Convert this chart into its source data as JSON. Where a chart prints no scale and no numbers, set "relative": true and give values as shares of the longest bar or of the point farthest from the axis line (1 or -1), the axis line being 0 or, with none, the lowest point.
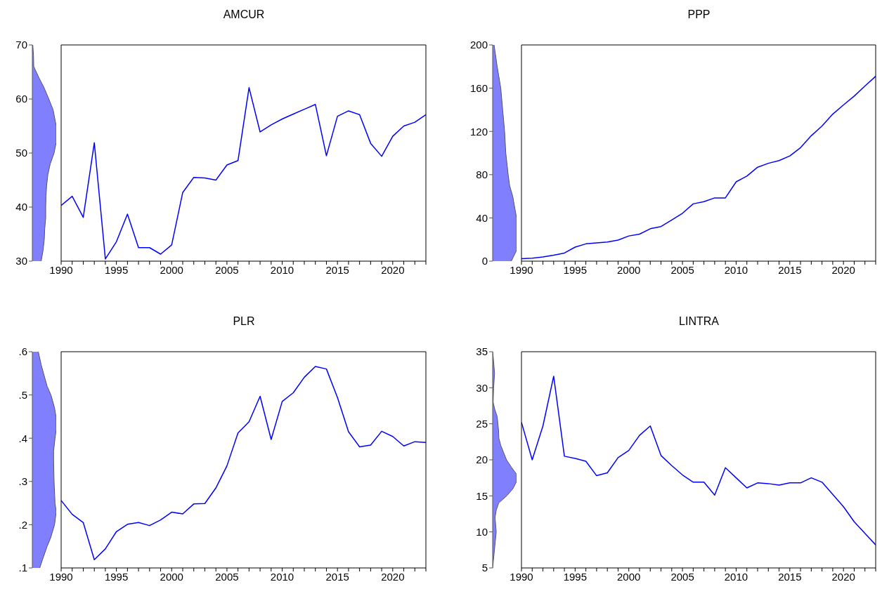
{
  "chart_data": [
    {
      "type": "area",
      "orientation": "horizontal",
      "relative": true,
      "color": "#8080ff",
      "x": [
        30,
        32,
        34,
        36,
        38,
        40,
        42,
        44,
        46,
        48,
        50,
        52,
        55,
        58,
        60,
        62,
        64,
        66,
        68,
        70
      ],
      "values": [
        0.37,
        0.45,
        0.5,
        0.52,
        0.56,
        0.56,
        0.57,
        0.6,
        0.65,
        0.75,
        0.91,
        1,
        1,
        0.87,
        0.69,
        0.5,
        0.27,
        0.06,
        0.05,
        0.02
      ],
      "ylim": [
        30,
        70
      ],
      "yticks": [
        30,
        40,
        50,
        60,
        70
      ],
      "tick_labels": "y"
    },
    {
      "type": "line",
      "title": "AMCUR",
      "color": "#0000ff",
      "x": [
        1990,
        1991,
        1992,
        1993,
        1994,
        1995,
        1996,
        1997,
        1998,
        1999,
        2000,
        2001,
        2002,
        2003,
        2004,
        2005,
        2006,
        2007,
        2008,
        2009,
        2010,
        2011,
        2012,
        2013,
        2014,
        2015,
        2016,
        2017,
        2018,
        2019,
        2020,
        2021,
        2022,
        2023
      ],
      "values": [
        40.3,
        42.0,
        38.1,
        51.9,
        30.4,
        33.6,
        38.7,
        32.5,
        32.5,
        31.3,
        33.0,
        42.7,
        45.5,
        45.4,
        45.0,
        47.8,
        48.6,
        62.1,
        53.9,
        55.2,
        56.3,
        57.2,
        58.1,
        59.0,
        49.5,
        56.8,
        57.8,
        57.1,
        51.8,
        49.4,
        53.1,
        55.0,
        55.7,
        57.1
      ],
      "xlim": [
        1990,
        2023
      ],
      "xticks": [
        1990,
        {
          "value": 1991,
          "label": null
        },
        {
          "value": 1992,
          "label": null
        },
        {
          "value": 1993,
          "label": null
        },
        {
          "value": 1994,
          "label": null
        },
        1995,
        {
          "value": 1996,
          "label": null
        },
        {
          "value": 1997,
          "label": null
        },
        {
          "value": 1998,
          "label": null
        },
        {
          "value": 1999,
          "label": null
        },
        2000,
        {
          "value": 2001,
          "label": null
        },
        {
          "value": 2002,
          "label": null
        },
        {
          "value": 2003,
          "label": null
        },
        {
          "value": 2004,
          "label": null
        },
        2005,
        {
          "value": 2006,
          "label": null
        },
        {
          "value": 2007,
          "label": null
        },
        {
          "value": 2008,
          "label": null
        },
        {
          "value": 2009,
          "label": null
        },
        2010,
        {
          "value": 2011,
          "label": null
        },
        {
          "value": 2012,
          "label": null
        },
        {
          "value": 2013,
          "label": null
        },
        {
          "value": 2014,
          "label": null
        },
        2015,
        {
          "value": 2016,
          "label": null
        },
        {
          "value": 2017,
          "label": null
        },
        {
          "value": 2018,
          "label": null
        },
        {
          "value": 2019,
          "label": null
        },
        2020,
        {
          "value": 2021,
          "label": null
        },
        {
          "value": 2022,
          "label": null
        },
        {
          "value": 2023,
          "label": null
        }
      ],
      "ylim": [
        30,
        70
      ],
      "tick_labels": "x"
    },
    {
      "type": "area",
      "orientation": "horizontal",
      "relative": true,
      "color": "#8080ff",
      "x": [
        0,
        10,
        20,
        40,
        60,
        70,
        80,
        100,
        120,
        140,
        160,
        180,
        200
      ],
      "values": [
        0.78,
        1,
        1,
        1,
        0.84,
        0.71,
        0.65,
        0.55,
        0.5,
        0.42,
        0.34,
        0.19,
        0.06
      ],
      "ylim": [
        0,
        200
      ],
      "yticks": [
        0,
        40,
        80,
        120,
        160,
        200
      ],
      "tick_labels": "y"
    },
    {
      "type": "line",
      "title": "PPP",
      "color": "#0000ff",
      "x": [
        1990,
        1991,
        1992,
        1993,
        1994,
        1995,
        1996,
        1997,
        1998,
        1999,
        2000,
        2001,
        2002,
        2003,
        2004,
        2005,
        2006,
        2007,
        2008,
        2009,
        2010,
        2011,
        2012,
        2013,
        2014,
        2015,
        2016,
        2017,
        2018,
        2019,
        2020,
        2021,
        2022,
        2023
      ],
      "values": [
        2.3,
        2.8,
        3.9,
        5.5,
        7.5,
        13,
        16,
        16.9,
        17.7,
        19.5,
        23.3,
        25,
        30,
        32,
        38,
        44.3,
        53,
        55,
        58.5,
        58.5,
        73.4,
        78.7,
        86.9,
        90.5,
        93,
        97.3,
        105,
        116,
        125,
        136,
        144.5,
        152.7,
        162,
        171
      ],
      "xlim": [
        1990,
        2023
      ],
      "xticks": [
        1990,
        {
          "value": 1991,
          "label": null
        },
        {
          "value": 1992,
          "label": null
        },
        {
          "value": 1993,
          "label": null
        },
        {
          "value": 1994,
          "label": null
        },
        1995,
        {
          "value": 1996,
          "label": null
        },
        {
          "value": 1997,
          "label": null
        },
        {
          "value": 1998,
          "label": null
        },
        {
          "value": 1999,
          "label": null
        },
        2000,
        {
          "value": 2001,
          "label": null
        },
        {
          "value": 2002,
          "label": null
        },
        {
          "value": 2003,
          "label": null
        },
        {
          "value": 2004,
          "label": null
        },
        2005,
        {
          "value": 2006,
          "label": null
        },
        {
          "value": 2007,
          "label": null
        },
        {
          "value": 2008,
          "label": null
        },
        {
          "value": 2009,
          "label": null
        },
        2010,
        {
          "value": 2011,
          "label": null
        },
        {
          "value": 2012,
          "label": null
        },
        {
          "value": 2013,
          "label": null
        },
        {
          "value": 2014,
          "label": null
        },
        2015,
        {
          "value": 2016,
          "label": null
        },
        {
          "value": 2017,
          "label": null
        },
        {
          "value": 2018,
          "label": null
        },
        {
          "value": 2019,
          "label": null
        },
        2020,
        {
          "value": 2021,
          "label": null
        },
        {
          "value": 2022,
          "label": null
        },
        {
          "value": 2023,
          "label": null
        }
      ],
      "ylim": [
        0,
        200
      ],
      "tick_labels": "x"
    },
    {
      "type": "area",
      "orientation": "horizontal",
      "relative": true,
      "color": "#8080ff",
      "x": [
        0.1,
        0.12,
        0.15,
        0.17,
        0.2,
        0.23,
        0.25,
        0.3,
        0.35,
        0.37,
        0.4,
        0.42,
        0.45,
        0.47,
        0.5,
        0.52,
        0.55,
        0.57,
        0.6
      ],
      "values": [
        0.31,
        0.43,
        0.62,
        0.77,
        0.93,
        1,
        0.95,
        0.91,
        0.89,
        0.89,
        0.95,
        1,
        0.99,
        0.93,
        0.78,
        0.62,
        0.47,
        0.37,
        0.25
      ],
      "ylim": [
        0.1,
        0.6
      ],
      "yticks": [
        {
          "value": 0.1,
          "label": ".1"
        },
        {
          "value": 0.2,
          "label": ".2"
        },
        {
          "value": 0.3,
          "label": ".3"
        },
        {
          "value": 0.4,
          "label": ".4"
        },
        {
          "value": 0.5,
          "label": ".5"
        },
        {
          "value": 0.6,
          "label": ".6"
        }
      ],
      "tick_labels": "y"
    },
    {
      "type": "line",
      "title": "PLR",
      "color": "#0000ff",
      "x": [
        1990,
        1991,
        1992,
        1993,
        1994,
        1995,
        1996,
        1997,
        1998,
        1999,
        2000,
        2001,
        2002,
        2003,
        2004,
        2005,
        2006,
        2007,
        2008,
        2009,
        2010,
        2011,
        2012,
        2013,
        2014,
        2015,
        2016,
        2017,
        2018,
        2019,
        2020,
        2021,
        2022,
        2023
      ],
      "values": [
        0.256,
        0.224,
        0.205,
        0.119,
        0.144,
        0.184,
        0.201,
        0.205,
        0.198,
        0.211,
        0.229,
        0.225,
        0.248,
        0.249,
        0.285,
        0.336,
        0.412,
        0.438,
        0.497,
        0.397,
        0.485,
        0.505,
        0.541,
        0.566,
        0.56,
        0.494,
        0.415,
        0.38,
        0.384,
        0.416,
        0.404,
        0.382,
        0.392,
        0.39
      ],
      "xlim": [
        1990,
        2023
      ],
      "xticks": [
        1990,
        {
          "value": 1991,
          "label": null
        },
        {
          "value": 1992,
          "label": null
        },
        {
          "value": 1993,
          "label": null
        },
        {
          "value": 1994,
          "label": null
        },
        1995,
        {
          "value": 1996,
          "label": null
        },
        {
          "value": 1997,
          "label": null
        },
        {
          "value": 1998,
          "label": null
        },
        {
          "value": 1999,
          "label": null
        },
        2000,
        {
          "value": 2001,
          "label": null
        },
        {
          "value": 2002,
          "label": null
        },
        {
          "value": 2003,
          "label": null
        },
        {
          "value": 2004,
          "label": null
        },
        2005,
        {
          "value": 2006,
          "label": null
        },
        {
          "value": 2007,
          "label": null
        },
        {
          "value": 2008,
          "label": null
        },
        {
          "value": 2009,
          "label": null
        },
        2010,
        {
          "value": 2011,
          "label": null
        },
        {
          "value": 2012,
          "label": null
        },
        {
          "value": 2013,
          "label": null
        },
        {
          "value": 2014,
          "label": null
        },
        2015,
        {
          "value": 2016,
          "label": null
        },
        {
          "value": 2017,
          "label": null
        },
        {
          "value": 2018,
          "label": null
        },
        {
          "value": 2019,
          "label": null
        },
        2020,
        {
          "value": 2021,
          "label": null
        },
        {
          "value": 2022,
          "label": null
        },
        {
          "value": 2023,
          "label": null
        }
      ],
      "ylim": [
        0.1,
        0.6
      ],
      "tick_labels": "x"
    },
    {
      "type": "area",
      "orientation": "horizontal",
      "relative": true,
      "color": "#8080ff",
      "x": [
        5,
        6,
        8,
        10,
        12,
        13,
        14,
        15,
        16,
        17,
        18,
        19,
        20,
        21,
        22,
        23,
        24,
        26,
        27,
        28,
        30,
        32,
        34,
        35
      ],
      "values": [
        0,
        0.03,
        0.09,
        0.15,
        0.1,
        0.15,
        0.25,
        0.59,
        0.85,
        1,
        1,
        0.78,
        0.58,
        0.46,
        0.34,
        0.26,
        0.25,
        0.19,
        0.09,
        0.02,
        0.04,
        0.08,
        0.03,
        0
      ],
      "ylim": [
        5,
        35
      ],
      "yticks": [
        5,
        10,
        15,
        20,
        25,
        30,
        35
      ],
      "tick_labels": "y"
    },
    {
      "type": "line",
      "title": "LINTRA",
      "color": "#0000ff",
      "x": [
        1990,
        1991,
        1992,
        1993,
        1994,
        1995,
        1996,
        1997,
        1998,
        1999,
        2000,
        2001,
        2002,
        2003,
        2004,
        2005,
        2006,
        2007,
        2008,
        2009,
        2010,
        2011,
        2012,
        2013,
        2014,
        2015,
        2016,
        2017,
        2018,
        2019,
        2020,
        2021,
        2022,
        2023
      ],
      "values": [
        25.2,
        20.0,
        24.7,
        31.6,
        20.5,
        20.2,
        19.8,
        17.8,
        18.2,
        20.3,
        21.3,
        23.4,
        24.7,
        20.6,
        19.2,
        17.9,
        16.9,
        16.9,
        15.1,
        18.9,
        17.5,
        16.1,
        16.8,
        16.7,
        16.5,
        16.8,
        16.8,
        17.5,
        16.9,
        15.2,
        13.5,
        11.4,
        9.8,
        8.2
      ],
      "xlim": [
        1990,
        2023
      ],
      "xticks": [
        1990,
        {
          "value": 1991,
          "label": null
        },
        {
          "value": 1992,
          "label": null
        },
        {
          "value": 1993,
          "label": null
        },
        {
          "value": 1994,
          "label": null
        },
        1995,
        {
          "value": 1996,
          "label": null
        },
        {
          "value": 1997,
          "label": null
        },
        {
          "value": 1998,
          "label": null
        },
        {
          "value": 1999,
          "label": null
        },
        2000,
        {
          "value": 2001,
          "label": null
        },
        {
          "value": 2002,
          "label": null
        },
        {
          "value": 2003,
          "label": null
        },
        {
          "value": 2004,
          "label": null
        },
        2005,
        {
          "value": 2006,
          "label": null
        },
        {
          "value": 2007,
          "label": null
        },
        {
          "value": 2008,
          "label": null
        },
        {
          "value": 2009,
          "label": null
        },
        2010,
        {
          "value": 2011,
          "label": null
        },
        {
          "value": 2012,
          "label": null
        },
        {
          "value": 2013,
          "label": null
        },
        {
          "value": 2014,
          "label": null
        },
        2015,
        {
          "value": 2016,
          "label": null
        },
        {
          "value": 2017,
          "label": null
        },
        {
          "value": 2018,
          "label": null
        },
        {
          "value": 2019,
          "label": null
        },
        2020,
        {
          "value": 2021,
          "label": null
        },
        {
          "value": 2022,
          "label": null
        },
        {
          "value": 2023,
          "label": null
        }
      ],
      "ylim": [
        5,
        35
      ],
      "tick_labels": "x"
    }
  ]
}
